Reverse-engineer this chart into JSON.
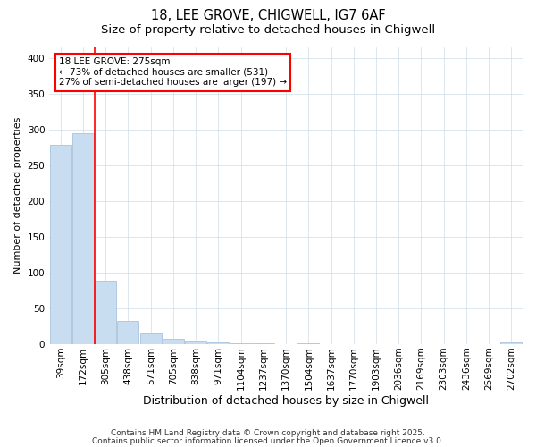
{
  "title1": "18, LEE GROVE, CHIGWELL, IG7 6AF",
  "title2": "Size of property relative to detached houses in Chigwell",
  "xlabel": "Distribution of detached houses by size in Chigwell",
  "ylabel": "Number of detached properties",
  "categories": [
    "39sqm",
    "172sqm",
    "305sqm",
    "438sqm",
    "571sqm",
    "705sqm",
    "838sqm",
    "971sqm",
    "1104sqm",
    "1237sqm",
    "1370sqm",
    "1504sqm",
    "1637sqm",
    "1770sqm",
    "1903sqm",
    "2036sqm",
    "2169sqm",
    "2303sqm",
    "2436sqm",
    "2569sqm",
    "2702sqm"
  ],
  "values": [
    278,
    295,
    88,
    32,
    15,
    7,
    5,
    2,
    1,
    1,
    0,
    1,
    0,
    0,
    0,
    0,
    0,
    0,
    0,
    0,
    2
  ],
  "bar_color": "#c8ddf0",
  "bar_edge_color": "#a8c4de",
  "red_line_x": 1.5,
  "ann_line1": "18 LEE GROVE: 275sqm",
  "ann_line2": "← 73% of detached houses are smaller (531)",
  "ann_line3": "27% of semi-detached houses are larger (197) →",
  "ylim": [
    0,
    415
  ],
  "yticks": [
    0,
    50,
    100,
    150,
    200,
    250,
    300,
    350,
    400
  ],
  "footnote1": "Contains HM Land Registry data © Crown copyright and database right 2025.",
  "footnote2": "Contains public sector information licensed under the Open Government Licence v3.0.",
  "background_color": "#ffffff",
  "grid_color": "#d0dce8",
  "title_fontsize": 10.5,
  "subtitle_fontsize": 9.5,
  "ylabel_fontsize": 8,
  "xlabel_fontsize": 9,
  "tick_fontsize": 7.5,
  "ann_fontsize": 7.5,
  "footnote_fontsize": 6.5
}
